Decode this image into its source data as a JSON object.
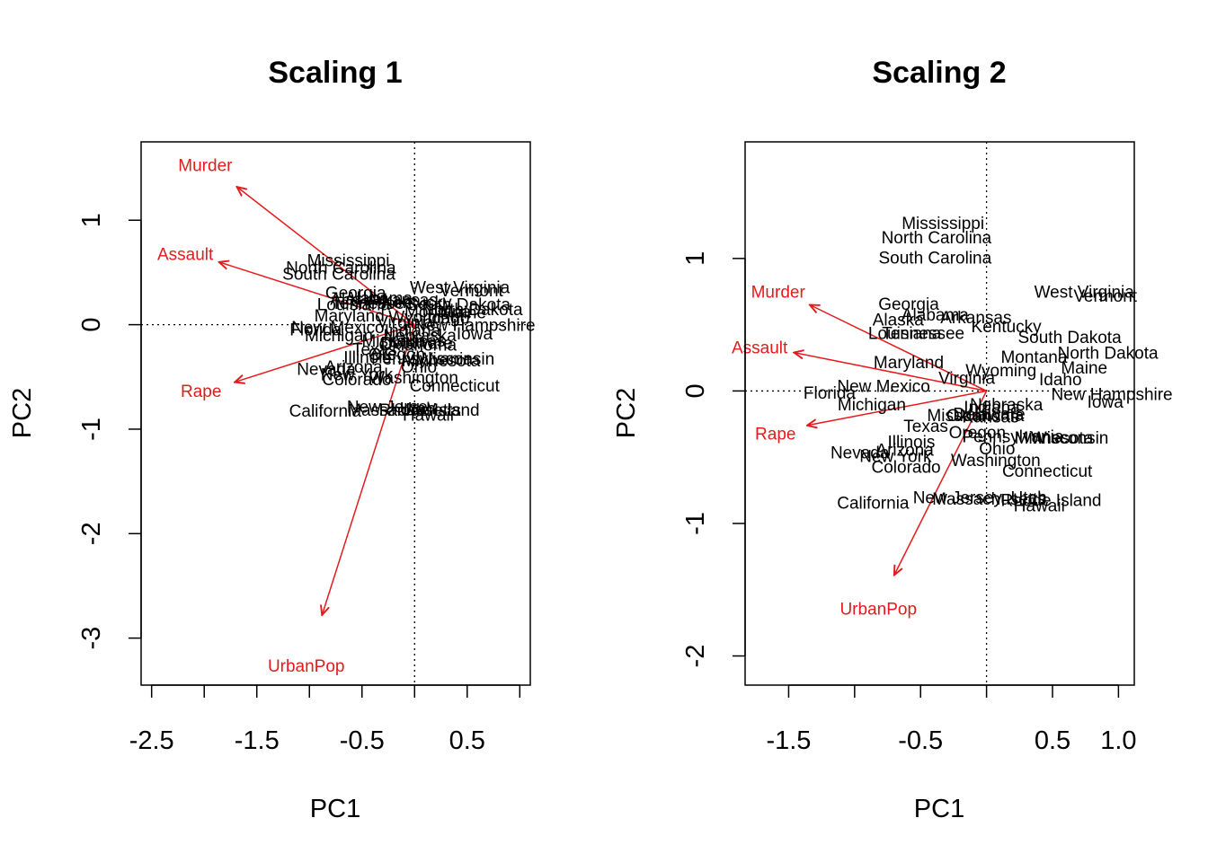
{
  "chart_data": [
    {
      "type": "biplot",
      "title": "Scaling 1",
      "xlabel": "PC1",
      "ylabel": "PC2",
      "xlim": [
        -2.6,
        1.1
      ],
      "ylim": [
        -3.45,
        1.75
      ],
      "xticks": [
        -2.5,
        -2.0,
        -1.5,
        -1.0,
        -0.5,
        0.0,
        0.5,
        1.0
      ],
      "xtick_labels": [
        "-2.5",
        "",
        "-1.5",
        "",
        "-0.5",
        "",
        "0.5",
        ""
      ],
      "yticks": [
        -3,
        -2,
        -1,
        0,
        1
      ],
      "ytick_labels": [
        "-3",
        "-2",
        "-1",
        "0",
        "1"
      ],
      "origin_lines": true,
      "arrows": [
        {
          "name": "Murder",
          "x": -1.69,
          "y": 1.32,
          "label_x": -1.99,
          "label_y": 1.53
        },
        {
          "name": "Assault",
          "x": -1.86,
          "y": 0.6,
          "label_x": -2.18,
          "label_y": 0.68
        },
        {
          "name": "UrbanPop",
          "x": -0.88,
          "y": -2.78,
          "label_x": -1.03,
          "label_y": -3.26
        },
        {
          "name": "Rape",
          "x": -1.71,
          "y": -0.55,
          "label_x": -2.03,
          "label_y": -0.63
        }
      ],
      "points": [
        {
          "label": "Mississippi",
          "x": -0.63,
          "y": 0.62
        },
        {
          "label": "North Carolina",
          "x": -0.7,
          "y": 0.55
        },
        {
          "label": "South Carolina",
          "x": -0.72,
          "y": 0.49
        },
        {
          "label": "West Virginia",
          "x": 0.43,
          "y": 0.36
        },
        {
          "label": "Vermont",
          "x": 0.54,
          "y": 0.33
        },
        {
          "label": "Georgia",
          "x": -0.56,
          "y": 0.31
        },
        {
          "label": "Alaska",
          "x": -0.56,
          "y": 0.25
        },
        {
          "label": "Alabama",
          "x": -0.34,
          "y": 0.26
        },
        {
          "label": "Arkansas",
          "x": -0.12,
          "y": 0.24
        },
        {
          "label": "Kentucky",
          "x": 0.02,
          "y": 0.22
        },
        {
          "label": "Louisiana",
          "x": -0.58,
          "y": 0.2
        },
        {
          "label": "Tennessee",
          "x": -0.4,
          "y": 0.21
        },
        {
          "label": "South Dakota",
          "x": 0.42,
          "y": 0.2
        },
        {
          "label": "North Dakota",
          "x": 0.55,
          "y": 0.15
        },
        {
          "label": "Montana",
          "x": 0.22,
          "y": 0.13
        },
        {
          "label": "Maine",
          "x": 0.46,
          "y": 0.12
        },
        {
          "label": "Maryland",
          "x": -0.62,
          "y": 0.09
        },
        {
          "label": "Idaho",
          "x": 0.32,
          "y": 0.07
        },
        {
          "label": "Wyoming",
          "x": 0.09,
          "y": 0.08
        },
        {
          "label": "Virginia",
          "x": -0.09,
          "y": 0.03
        },
        {
          "label": "New Hampshire",
          "x": 0.57,
          "y": 0.0
        },
        {
          "label": "New Mexico",
          "x": -0.73,
          "y": -0.02
        },
        {
          "label": "Iowa",
          "x": 0.57,
          "y": -0.08
        },
        {
          "label": "Florida",
          "x": -0.94,
          "y": -0.04
        },
        {
          "label": "Michigan",
          "x": -0.72,
          "y": -0.1
        },
        {
          "label": "Indiana",
          "x": -0.02,
          "y": -0.05
        },
        {
          "label": "Nebraska",
          "x": 0.05,
          "y": -0.1
        },
        {
          "label": "Missouri",
          "x": -0.2,
          "y": -0.15
        },
        {
          "label": "Kansas",
          "x": 0.02,
          "y": -0.15
        },
        {
          "label": "Delaware",
          "x": 0.02,
          "y": -0.17
        },
        {
          "label": "Oklahoma",
          "x": 0.03,
          "y": -0.19
        },
        {
          "label": "Texas",
          "x": -0.38,
          "y": -0.23
        },
        {
          "label": "Oregon",
          "x": -0.17,
          "y": -0.28
        },
        {
          "label": "Pennsylvania",
          "x": 0.07,
          "y": -0.32
        },
        {
          "label": "Wisconsin",
          "x": 0.39,
          "y": -0.32
        },
        {
          "label": "Minnesota",
          "x": 0.25,
          "y": -0.34
        },
        {
          "label": "Illinois",
          "x": -0.45,
          "y": -0.31
        },
        {
          "label": "Arizona",
          "x": -0.58,
          "y": -0.4
        },
        {
          "label": "Ohio",
          "x": 0.04,
          "y": -0.4
        },
        {
          "label": "Nevada",
          "x": -0.84,
          "y": -0.42
        },
        {
          "label": "New York",
          "x": -0.55,
          "y": -0.47
        },
        {
          "label": "Washington",
          "x": -0.01,
          "y": -0.5
        },
        {
          "label": "Colorado",
          "x": -0.55,
          "y": -0.52
        },
        {
          "label": "Connecticut",
          "x": 0.38,
          "y": -0.58
        },
        {
          "label": "California",
          "x": -0.85,
          "y": -0.82
        },
        {
          "label": "New Jersey",
          "x": -0.22,
          "y": -0.78
        },
        {
          "label": "Massachusetts",
          "x": -0.1,
          "y": -0.81
        },
        {
          "label": "Utah",
          "x": 0.03,
          "y": -0.8
        },
        {
          "label": "Rhode Island",
          "x": 0.14,
          "y": -0.81
        },
        {
          "label": "Hawaii",
          "x": 0.13,
          "y": -0.86
        }
      ]
    },
    {
      "type": "biplot",
      "title": "Scaling 2",
      "xlabel": "PC1",
      "ylabel": "PC2",
      "xlim": [
        -1.83,
        1.12
      ],
      "ylim": [
        -2.22,
        1.88
      ],
      "xticks": [
        -1.5,
        -1.0,
        -0.5,
        0.0,
        0.5,
        1.0
      ],
      "xtick_labels": [
        "-1.5",
        "",
        "-0.5",
        "",
        "0.5",
        "1.0"
      ],
      "yticks": [
        -2,
        -1,
        0,
        1
      ],
      "ytick_labels": [
        "-2",
        "-1",
        "0",
        "1"
      ],
      "origin_lines": true,
      "arrows": [
        {
          "name": "Murder",
          "x": -1.34,
          "y": 0.65,
          "label_x": -1.58,
          "label_y": 0.75
        },
        {
          "name": "Assault",
          "x": -1.46,
          "y": 0.29,
          "label_x": -1.72,
          "label_y": 0.33
        },
        {
          "name": "UrbanPop",
          "x": -0.7,
          "y": -1.39,
          "label_x": -0.82,
          "label_y": -1.64
        },
        {
          "name": "Rape",
          "x": -1.36,
          "y": -0.26,
          "label_x": -1.6,
          "label_y": -0.32
        }
      ],
      "points": [
        {
          "label": "Mississippi",
          "x": -0.33,
          "y": 1.27
        },
        {
          "label": "North Carolina",
          "x": -0.38,
          "y": 1.16
        },
        {
          "label": "South Carolina",
          "x": -0.39,
          "y": 1.01
        },
        {
          "label": "West Virginia",
          "x": 0.74,
          "y": 0.75
        },
        {
          "label": "Vermont",
          "x": 0.9,
          "y": 0.72
        },
        {
          "label": "Georgia",
          "x": -0.59,
          "y": 0.66
        },
        {
          "label": "Alaska",
          "x": -0.67,
          "y": 0.54
        },
        {
          "label": "Alabama",
          "x": -0.39,
          "y": 0.58
        },
        {
          "label": "Arkansas",
          "x": -0.08,
          "y": 0.56
        },
        {
          "label": "Kentucky",
          "x": 0.15,
          "y": 0.49
        },
        {
          "label": "Louisiana",
          "x": -0.62,
          "y": 0.44
        },
        {
          "label": "Tennessee",
          "x": -0.48,
          "y": 0.44
        },
        {
          "label": "South Dakota",
          "x": 0.63,
          "y": 0.41
        },
        {
          "label": "North Dakota",
          "x": 0.92,
          "y": 0.29
        },
        {
          "label": "Montana",
          "x": 0.36,
          "y": 0.26
        },
        {
          "label": "Maine",
          "x": 0.74,
          "y": 0.18
        },
        {
          "label": "Maryland",
          "x": -0.59,
          "y": 0.22
        },
        {
          "label": "Idaho",
          "x": 0.56,
          "y": 0.09
        },
        {
          "label": "Wyoming",
          "x": 0.11,
          "y": 0.16
        },
        {
          "label": "Virginia",
          "x": -0.15,
          "y": 0.1
        },
        {
          "label": "New Hampshire",
          "x": 0.95,
          "y": -0.02
        },
        {
          "label": "New Mexico",
          "x": -0.78,
          "y": 0.04
        },
        {
          "label": "Iowa",
          "x": 0.9,
          "y": -0.08
        },
        {
          "label": "Florida",
          "x": -1.19,
          "y": -0.01
        },
        {
          "label": "Michigan",
          "x": -0.87,
          "y": -0.1
        },
        {
          "label": "Indiana",
          "x": 0.04,
          "y": -0.12
        },
        {
          "label": "Nebraska",
          "x": 0.15,
          "y": -0.1
        },
        {
          "label": "Missouri",
          "x": -0.21,
          "y": -0.18
        },
        {
          "label": "Kansas",
          "x": 0.03,
          "y": -0.19
        },
        {
          "label": "Delaware",
          "x": 0.02,
          "y": -0.17
        },
        {
          "label": "Oklahoma",
          "x": -0.01,
          "y": -0.18
        },
        {
          "label": "Texas",
          "x": -0.46,
          "y": -0.26
        },
        {
          "label": "Oregon",
          "x": -0.07,
          "y": -0.31
        },
        {
          "label": "Pennsylvania",
          "x": 0.2,
          "y": -0.34
        },
        {
          "label": "Wisconsin",
          "x": 0.63,
          "y": -0.35
        },
        {
          "label": "Minnesota",
          "x": 0.51,
          "y": -0.35
        },
        {
          "label": "Illinois",
          "x": -0.57,
          "y": -0.38
        },
        {
          "label": "Arizona",
          "x": -0.62,
          "y": -0.44
        },
        {
          "label": "Ohio",
          "x": 0.08,
          "y": -0.43
        },
        {
          "label": "Nevada",
          "x": -0.96,
          "y": -0.46
        },
        {
          "label": "New York",
          "x": -0.69,
          "y": -0.49
        },
        {
          "label": "Washington",
          "x": 0.07,
          "y": -0.52
        },
        {
          "label": "Colorado",
          "x": -0.61,
          "y": -0.57
        },
        {
          "label": "Connecticut",
          "x": 0.46,
          "y": -0.6
        },
        {
          "label": "California",
          "x": -0.86,
          "y": -0.84
        },
        {
          "label": "New Jersey",
          "x": -0.22,
          "y": -0.8
        },
        {
          "label": "Massachusetts",
          "x": 0.02,
          "y": -0.81
        },
        {
          "label": "Utah",
          "x": 0.32,
          "y": -0.8
        },
        {
          "label": "Rhode Island",
          "x": 0.49,
          "y": -0.82
        },
        {
          "label": "Hawaii",
          "x": 0.4,
          "y": -0.86
        }
      ]
    }
  ],
  "colors": {
    "arrow": "#e41a1c",
    "text": "#000000",
    "frame": "#000000",
    "background": "#ffffff"
  }
}
